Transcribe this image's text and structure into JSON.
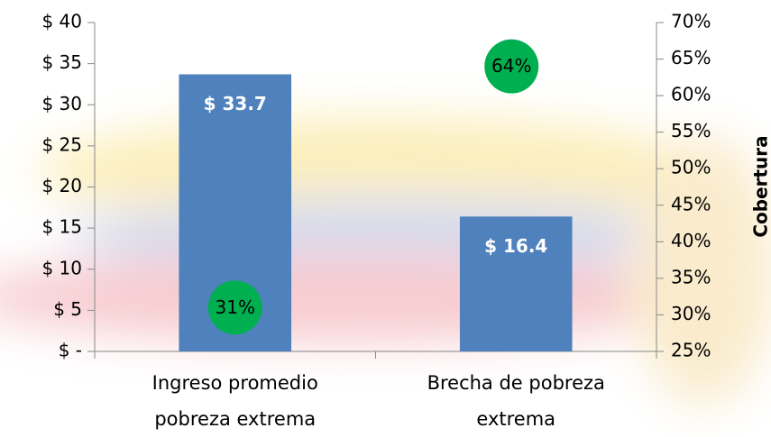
{
  "chart_data": {
    "type": "bar",
    "categories": [
      "Ingreso promedio pobreza extrema",
      "Brecha de pobreza extrema"
    ],
    "series": [
      {
        "color": "#4f81bd",
        "values": [
          33.7,
          16.4
        ],
        "value_labels": [
          "$ 33.7",
          "$ 16.4"
        ]
      },
      {
        "color": "#00b050",
        "values": [
          31,
          64
        ],
        "value_labels": [
          "31%",
          "64%"
        ],
        "axis": "y2"
      }
    ],
    "ylim": [
      0,
      40
    ],
    "yticks": [
      {
        "value": 0,
        "label": "$ -"
      },
      {
        "value": 5,
        "label": "$ 5"
      },
      {
        "value": 10,
        "label": "$ 10"
      },
      {
        "value": 15,
        "label": "$ 15"
      },
      {
        "value": 20,
        "label": "$ 20"
      },
      {
        "value": 25,
        "label": "$ 25"
      },
      {
        "value": 30,
        "label": "$ 30"
      },
      {
        "value": 35,
        "label": "$ 35"
      },
      {
        "value": 40,
        "label": "$ 40"
      }
    ],
    "y2lim": [
      25,
      70
    ],
    "y2ticks": [
      {
        "value": 25,
        "label": "25%"
      },
      {
        "value": 30,
        "label": "30%"
      },
      {
        "value": 35,
        "label": "35%"
      },
      {
        "value": 40,
        "label": "40%"
      },
      {
        "value": 45,
        "label": "45%"
      },
      {
        "value": 50,
        "label": "50%"
      },
      {
        "value": 55,
        "label": "55%"
      },
      {
        "value": 60,
        "label": "60%"
      },
      {
        "value": 65,
        "label": "65%"
      },
      {
        "value": 70,
        "label": "70%"
      }
    ],
    "y2label": "Cobertura"
  }
}
